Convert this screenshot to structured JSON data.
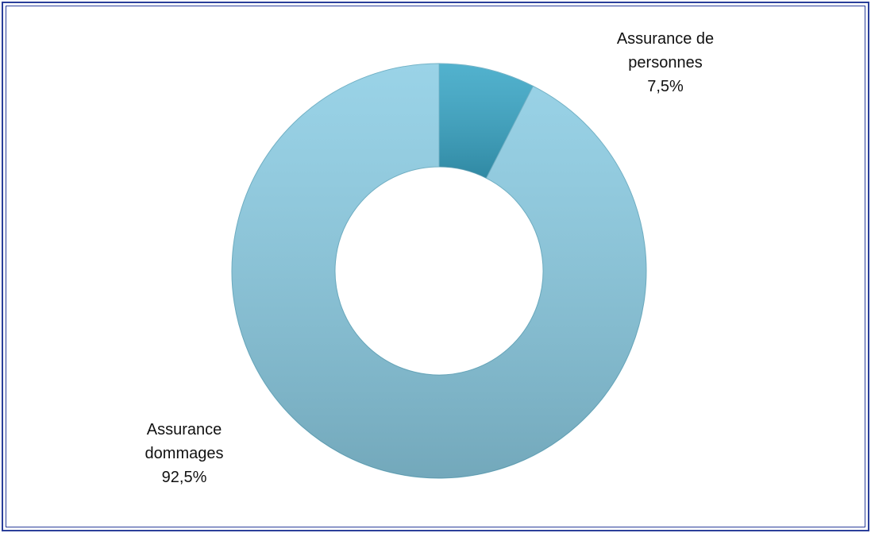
{
  "chart_data": {
    "type": "donut",
    "categories": [
      "Assurance de personnes",
      "Assurance dommages"
    ],
    "values": [
      7.5,
      92.5
    ],
    "value_labels": [
      "7,5%",
      "92,5%"
    ],
    "colors": [
      "#3aa7c7",
      "#8ccde4"
    ]
  }
}
